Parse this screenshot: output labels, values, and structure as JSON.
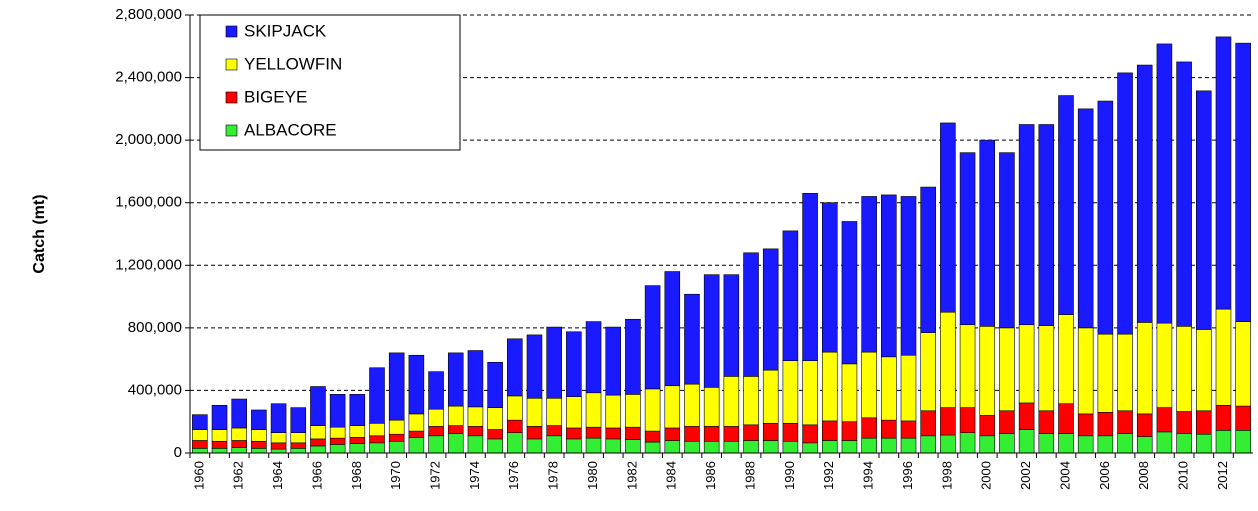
{
  "chart_data": {
    "type": "bar",
    "stacked": true,
    "y_label": "Catch (mt)",
    "categories": [
      "1960",
      null,
      "1962",
      null,
      "1964",
      null,
      "1966",
      null,
      "1968",
      null,
      "1970",
      null,
      "1972",
      null,
      "1974",
      null,
      "1976",
      null,
      "1978",
      null,
      "1980",
      null,
      "1982",
      null,
      "1984",
      null,
      "1986",
      null,
      "1988",
      null,
      "1990",
      null,
      "1992",
      null,
      "1994",
      null,
      "1996",
      null,
      "1998",
      null,
      "2000",
      null,
      "2002",
      null,
      "2004",
      null,
      "2006",
      null,
      "2008",
      null,
      "2010",
      null,
      "2012",
      null
    ],
    "series": [
      {
        "name": "SKIPJACK",
        "color": "#1a1aff",
        "values": [
          95000,
          155000,
          185000,
          125000,
          185000,
          160000,
          250000,
          210000,
          200000,
          355000,
          430000,
          375000,
          240000,
          340000,
          360000,
          290000,
          365000,
          405000,
          455000,
          415000,
          455000,
          435000,
          480000,
          660000,
          730000,
          575000,
          720000,
          650000,
          790000,
          775000,
          830000,
          1070000,
          955000,
          910000,
          995000,
          1035000,
          1015000,
          930000,
          1210000,
          1100000,
          1190000,
          1120000,
          1280000,
          1285000,
          1400000,
          1400000,
          1490000,
          1670000,
          1645000,
          1785000,
          1690000,
          1525000,
          1740000,
          1780000
        ]
      },
      {
        "name": "YELLOWFIN",
        "color": "#ffff00",
        "values": [
          70000,
          75000,
          80000,
          75000,
          65000,
          65000,
          85000,
          70000,
          75000,
          80000,
          90000,
          110000,
          110000,
          125000,
          125000,
          140000,
          155000,
          180000,
          175000,
          200000,
          220000,
          210000,
          210000,
          270000,
          270000,
          270000,
          250000,
          320000,
          310000,
          340000,
          400000,
          410000,
          440000,
          370000,
          420000,
          405000,
          420000,
          500000,
          610000,
          530000,
          570000,
          530000,
          500000,
          545000,
          570000,
          550000,
          500000,
          490000,
          585000,
          540000,
          545000,
          520000,
          615000,
          540000
        ]
      },
      {
        "name": "BIGEYE",
        "color": "#ff0000",
        "values": [
          50000,
          45000,
          45000,
          45000,
          40000,
          35000,
          45000,
          40000,
          40000,
          45000,
          45000,
          40000,
          60000,
          50000,
          60000,
          60000,
          80000,
          80000,
          65000,
          70000,
          70000,
          70000,
          80000,
          70000,
          80000,
          95000,
          95000,
          95000,
          100000,
          110000,
          115000,
          115000,
          125000,
          120000,
          130000,
          115000,
          110000,
          160000,
          175000,
          160000,
          130000,
          145000,
          170000,
          145000,
          190000,
          140000,
          150000,
          145000,
          145000,
          155000,
          140000,
          150000,
          160000,
          155000
        ]
      },
      {
        "name": "ALBACORE",
        "color": "#33ee33",
        "values": [
          30000,
          30000,
          35000,
          30000,
          25000,
          30000,
          45000,
          55000,
          60000,
          65000,
          75000,
          100000,
          110000,
          125000,
          110000,
          90000,
          130000,
          90000,
          110000,
          90000,
          95000,
          90000,
          85000,
          70000,
          80000,
          75000,
          75000,
          75000,
          80000,
          80000,
          75000,
          65000,
          80000,
          80000,
          95000,
          95000,
          95000,
          110000,
          115000,
          130000,
          110000,
          125000,
          150000,
          125000,
          125000,
          110000,
          110000,
          125000,
          105000,
          135000,
          125000,
          120000,
          145000,
          145000
        ]
      }
    ],
    "ylim": [
      0,
      2800000
    ],
    "yticks": [
      0,
      {
        "value": 400000,
        "label": "400,000"
      },
      {
        "value": 800000,
        "label": "800,000"
      },
      {
        "value": 1200000,
        "label": "1,200,000"
      },
      {
        "value": 1600000,
        "label": "1,600,000"
      },
      {
        "value": 2000000,
        "label": "2,000,000"
      },
      {
        "value": 2400000,
        "label": "2,400,000"
      },
      {
        "value": 2800000,
        "label": "2,800,000"
      }
    ],
    "grid": true,
    "legend": "top-left"
  }
}
